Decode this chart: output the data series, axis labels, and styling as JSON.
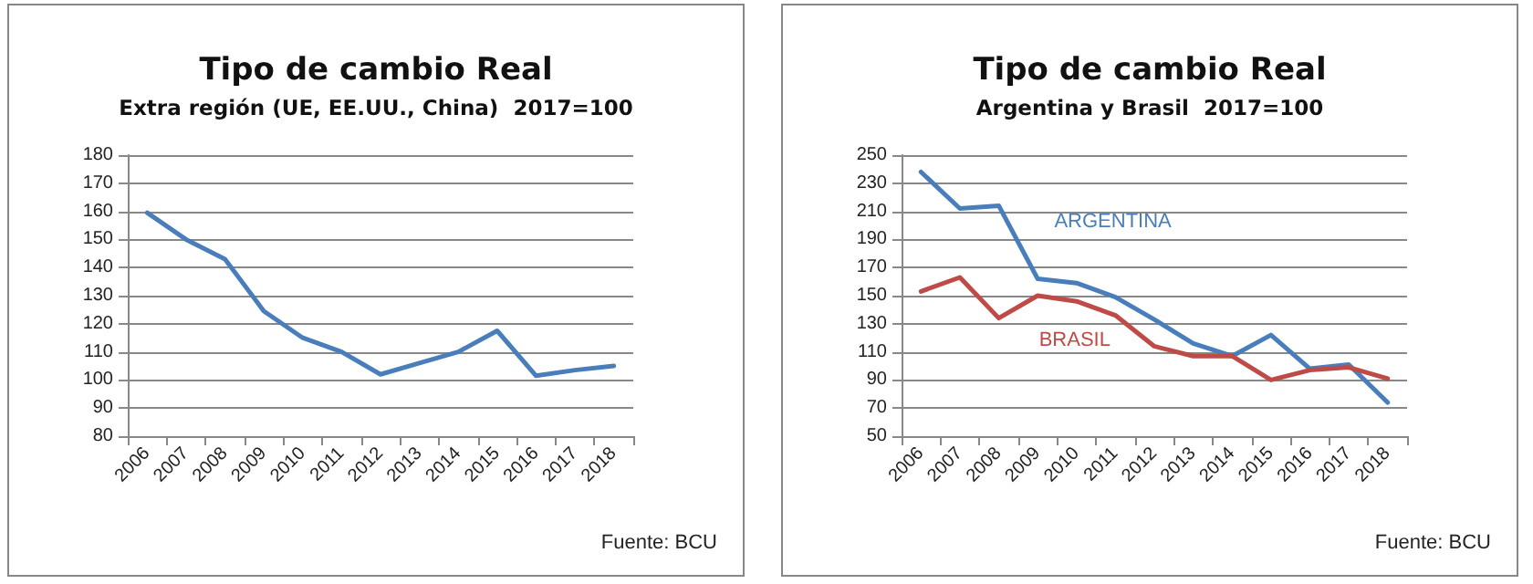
{
  "chart_data": [
    {
      "type": "line",
      "title": "Tipo de cambio Real",
      "subtitle": "Extra región (UE, EE.UU., China)  2017=100",
      "categories": [
        "2006",
        "2007",
        "2008",
        "2009",
        "2010",
        "2011",
        "2012",
        "2013",
        "2014",
        "2015",
        "2016",
        "2017",
        "2018"
      ],
      "series": [
        {
          "color": "#4a7ebb",
          "values": [
            159.5,
            150,
            143,
            124.5,
            115,
            110,
            102,
            106,
            110,
            117.5,
            101.5,
            103.5,
            105
          ]
        }
      ],
      "ylim": [
        80,
        180
      ],
      "yticks": [
        80,
        90,
        100,
        110,
        120,
        130,
        140,
        150,
        160,
        170,
        180
      ],
      "grid": "y",
      "legend": false,
      "marker": "none",
      "annotations": [
        "Fuente: BCU"
      ]
    },
    {
      "type": "line",
      "title": "Tipo de cambio Real",
      "subtitle": "Argentina y Brasil  2017=100",
      "categories": [
        "2006",
        "2007",
        "2008",
        "2009",
        "2010",
        "2011",
        "2012",
        "2013",
        "2014",
        "2015",
        "2016",
        "2017",
        "2018"
      ],
      "series": [
        {
          "name": "ARGENTINA",
          "color": "#4a7ebb",
          "values": [
            238,
            212,
            214,
            162,
            159,
            149,
            133,
            116,
            107,
            122,
            98,
            101,
            74
          ]
        },
        {
          "name": "BRASIL",
          "color": "#be4b48",
          "values": [
            153,
            163,
            134,
            150,
            146,
            136,
            114,
            107,
            107,
            90,
            97,
            99,
            91
          ]
        }
      ],
      "ylim": [
        50,
        250
      ],
      "yticks": [
        50,
        70,
        90,
        110,
        130,
        150,
        170,
        190,
        210,
        230,
        250
      ],
      "grid": "y",
      "legend": false,
      "marker": "none",
      "annotations": [
        "Fuente: BCU"
      ]
    }
  ]
}
